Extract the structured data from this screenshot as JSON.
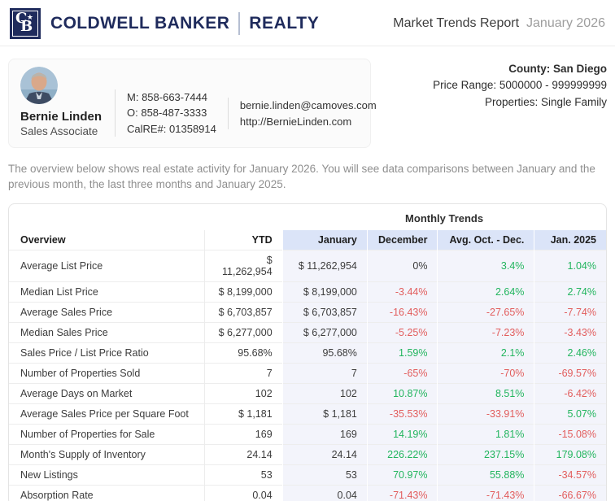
{
  "brand": {
    "monogram_c": "C",
    "monogram_b": "B",
    "star": "★",
    "name": "COLDWELL BANKER",
    "division": "REALTY",
    "navy": "#1f2b5c"
  },
  "report_header": {
    "title": "Market Trends Report",
    "period": "January 2026"
  },
  "agent": {
    "name": "Bernie Linden",
    "role": "Sales Associate",
    "mobile": "M: 858-663-7444",
    "office": "O: 858-487-3333",
    "license": "CalRE#: 01358914",
    "email": "bernie.linden@camoves.com",
    "website": "http://BernieLinden.com"
  },
  "criteria": {
    "county": "County: San Diego",
    "price_range": "Price Range: 5000000 - 999999999",
    "properties": "Properties: Single Family"
  },
  "intro": "The overview below shows real estate activity for January 2026. You will see data comparisons between January and the previous month, the last three months and January 2025.",
  "table": {
    "group_header": "Monthly Trends",
    "columns": [
      "Overview",
      "YTD",
      "January",
      "December",
      "Avg. Oct. - Dec.",
      "Jan. 2025"
    ],
    "rows": [
      {
        "label": "Average List Price",
        "ytd": "$ 11,262,954",
        "january": "$ 11,262,954",
        "trends": [
          {
            "t": "0%",
            "c": "neutral"
          },
          {
            "t": "3.4%",
            "c": "up"
          },
          {
            "t": "1.04%",
            "c": "up"
          }
        ]
      },
      {
        "label": "Median List Price",
        "ytd": "$ 8,199,000",
        "january": "$ 8,199,000",
        "trends": [
          {
            "t": "-3.44%",
            "c": "down"
          },
          {
            "t": "2.64%",
            "c": "up"
          },
          {
            "t": "2.74%",
            "c": "up"
          }
        ]
      },
      {
        "label": "Average Sales Price",
        "ytd": "$ 6,703,857",
        "january": "$ 6,703,857",
        "trends": [
          {
            "t": "-16.43%",
            "c": "down"
          },
          {
            "t": "-27.65%",
            "c": "down"
          },
          {
            "t": "-7.74%",
            "c": "down"
          }
        ]
      },
      {
        "label": "Median Sales Price",
        "ytd": "$ 6,277,000",
        "january": "$ 6,277,000",
        "trends": [
          {
            "t": "-5.25%",
            "c": "down"
          },
          {
            "t": "-7.23%",
            "c": "down"
          },
          {
            "t": "-3.43%",
            "c": "down"
          }
        ]
      },
      {
        "label": "Sales Price / List Price Ratio",
        "ytd": "95.68%",
        "january": "95.68%",
        "trends": [
          {
            "t": "1.59%",
            "c": "up"
          },
          {
            "t": "2.1%",
            "c": "up"
          },
          {
            "t": "2.46%",
            "c": "up"
          }
        ]
      },
      {
        "label": "Number of Properties Sold",
        "ytd": "7",
        "january": "7",
        "trends": [
          {
            "t": "-65%",
            "c": "down"
          },
          {
            "t": "-70%",
            "c": "down"
          },
          {
            "t": "-69.57%",
            "c": "down"
          }
        ]
      },
      {
        "label": "Average Days on Market",
        "ytd": "102",
        "january": "102",
        "trends": [
          {
            "t": "10.87%",
            "c": "up"
          },
          {
            "t": "8.51%",
            "c": "up"
          },
          {
            "t": "-6.42%",
            "c": "down"
          }
        ]
      },
      {
        "label": "Average Sales Price per Square Foot",
        "ytd": "$ 1,181",
        "january": "$ 1,181",
        "trends": [
          {
            "t": "-35.53%",
            "c": "down"
          },
          {
            "t": "-33.91%",
            "c": "down"
          },
          {
            "t": "5.07%",
            "c": "up"
          }
        ]
      },
      {
        "label": "Number of Properties for Sale",
        "ytd": "169",
        "january": "169",
        "trends": [
          {
            "t": "14.19%",
            "c": "up"
          },
          {
            "t": "1.81%",
            "c": "up"
          },
          {
            "t": "-15.08%",
            "c": "down"
          }
        ]
      },
      {
        "label": "Month's Supply of Inventory",
        "ytd": "24.14",
        "january": "24.14",
        "trends": [
          {
            "t": "226.22%",
            "c": "up"
          },
          {
            "t": "237.15%",
            "c": "up"
          },
          {
            "t": "179.08%",
            "c": "up"
          }
        ]
      },
      {
        "label": "New Listings",
        "ytd": "53",
        "january": "53",
        "trends": [
          {
            "t": "70.97%",
            "c": "up"
          },
          {
            "t": "55.88%",
            "c": "up"
          },
          {
            "t": "-34.57%",
            "c": "down"
          }
        ]
      },
      {
        "label": "Absorption Rate",
        "ytd": "0.04",
        "january": "0.04",
        "trends": [
          {
            "t": "-71.43%",
            "c": "down"
          },
          {
            "t": "-71.43%",
            "c": "down"
          },
          {
            "t": "-66.67%",
            "c": "down"
          }
        ]
      }
    ]
  },
  "colors": {
    "brand_navy": "#1f2b5c",
    "positive_green": "#22b55e",
    "negative_red": "#e25d5d",
    "header_cell_bg": "#dbe4f8",
    "trend_cell_bg": "#f3f4fb"
  }
}
